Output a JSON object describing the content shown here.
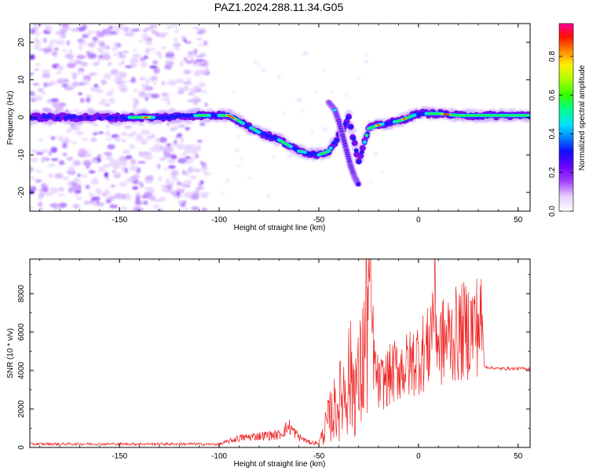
{
  "title": "PAZ1.2024.288.11.34.G05",
  "chart_data": [
    {
      "type": "heatmap",
      "xlabel": "Height of straight line (km)",
      "ylabel": "Frequency (Hz)",
      "xlim": [
        -195,
        56
      ],
      "ylim": [
        -25,
        25
      ],
      "xticks": [
        -150,
        -100,
        -50,
        0,
        50
      ],
      "yticks": [
        -20,
        -10,
        0,
        10,
        20
      ],
      "colorbar": {
        "label": "Normalized spectral amplitude",
        "ticks": [
          0.0,
          0.2,
          0.4,
          0.6,
          0.8
        ],
        "tick_labels": [
          "0.0",
          "0.2",
          "0.4",
          "0.6",
          "0.8"
        ],
        "range": [
          0,
          0.97
        ],
        "colormap": "white-purple-blue-cyan-green-yellow-red-magenta"
      },
      "ridge": {
        "description_x_km": [
          -195,
          -150,
          -130,
          -110,
          -95,
          -90,
          -80,
          -70,
          -60,
          -50,
          -45,
          -40,
          -35,
          -30,
          -25,
          -20,
          -10,
          0,
          10,
          20,
          30,
          40,
          56
        ],
        "frequency_hz": [
          0,
          0,
          0,
          0.5,
          0.5,
          -1,
          -4,
          -6,
          -9,
          -10,
          -9,
          -5,
          0,
          -12,
          -3,
          -2,
          -1,
          1,
          1,
          0.5,
          0.5,
          0.5,
          0.5
        ]
      },
      "branch": {
        "x_km": [
          -45,
          -42,
          -40,
          -38,
          -36,
          -34,
          -32,
          -30
        ],
        "frequency_hz": [
          4,
          2,
          -1,
          -5,
          -9,
          -13,
          -16,
          -18
        ]
      },
      "noise_region_x_km": [
        -195,
        -110
      ]
    },
    {
      "type": "line",
      "xlabel": "Height of straight line (km)",
      "ylabel": "SNR (10 * v/v)",
      "xlim": [
        -195,
        56
      ],
      "ylim": [
        0,
        9800
      ],
      "xticks": [
        -150,
        -100,
        -50,
        0,
        50
      ],
      "yticks": [
        0,
        2000,
        4000,
        6000,
        8000
      ],
      "series": [
        {
          "color": "#ee2222",
          "x": [
            -195,
            -150,
            -120,
            -100,
            -90,
            -80,
            -70,
            -65,
            -60,
            -55,
            -50,
            -45,
            -42,
            -40,
            -35,
            -30,
            -27,
            -25,
            -22,
            -20,
            -15,
            -10,
            -5,
            0,
            5,
            8,
            10,
            15,
            20,
            25,
            30,
            32,
            33,
            40,
            50,
            56
          ],
          "y": [
            150,
            150,
            150,
            150,
            450,
            550,
            600,
            1000,
            500,
            250,
            200,
            1600,
            2200,
            2500,
            4000,
            3500,
            5500,
            9800,
            4500,
            3500,
            4000,
            4500,
            4600,
            5200,
            5600,
            8400,
            5800,
            6200,
            6400,
            6700,
            7000,
            6900,
            4200,
            4100,
            4100,
            4100
          ]
        }
      ]
    }
  ],
  "colors": {
    "line": "#ee2222",
    "low": "#ffffff",
    "purple": "#8a2be2",
    "blue": "#1010ff",
    "cyan": "#00e5ff",
    "green": "#22dd44",
    "yellow": "#ffee00",
    "red": "#ff1100",
    "magenta": "#ff0099"
  }
}
